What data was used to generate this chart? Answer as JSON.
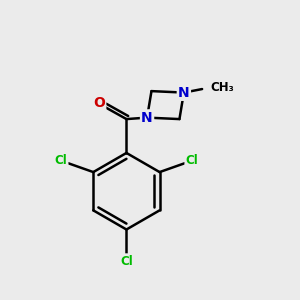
{
  "background_color": "#ebebeb",
  "bond_color": "#000000",
  "bond_width": 1.8,
  "atom_colors": {
    "C": "#000000",
    "N": "#0000cc",
    "O": "#cc0000",
    "Cl": "#00bb00"
  },
  "figsize": [
    3.0,
    3.0
  ],
  "dpi": 100,
  "xlim": [
    0,
    10
  ],
  "ylim": [
    0,
    10
  ]
}
